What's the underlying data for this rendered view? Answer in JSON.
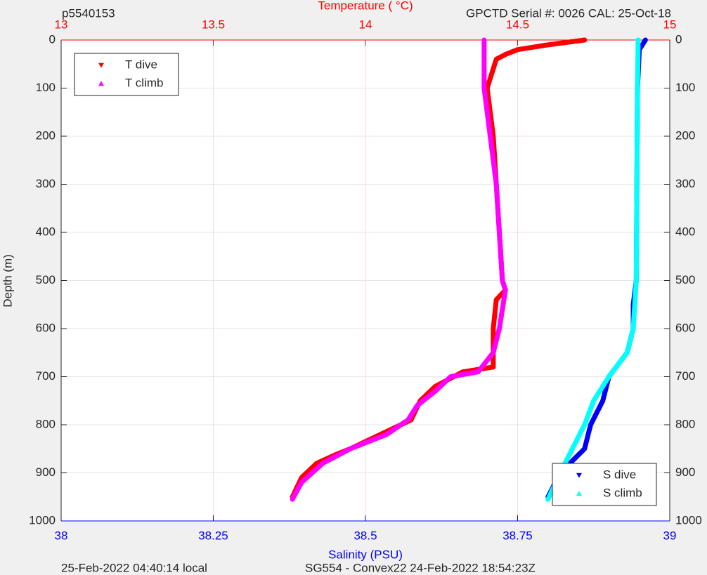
{
  "chart_data": {
    "type": "line",
    "title": "p5540153",
    "subtitle": "GPCTD Serial #: 0026 CAL: 25-Oct-18",
    "x2label": "Temperature (   °C)",
    "xlabel": "Salinity (PSU)",
    "ylabel": "Depth (m)",
    "footer_left": "25-Feb-2022 04:40:14 local",
    "footer_right": "SG554 - Convex22 24-Feb-2022 18:54:23Z",
    "xlim": [
      38,
      39
    ],
    "xticks": [
      38,
      38.25,
      38.5,
      38.75,
      39
    ],
    "xcolor": "#0000ff",
    "x2lim": [
      13,
      15
    ],
    "x2ticks": [
      13,
      13.5,
      14,
      14.5,
      15
    ],
    "x2color": "#ff0000",
    "ylim": [
      1000,
      0
    ],
    "yticks": [
      0,
      100,
      200,
      300,
      400,
      500,
      600,
      700,
      800,
      900,
      1000
    ],
    "grid": true,
    "series": [
      {
        "name": "T dive",
        "color": "#ff0000",
        "marker": "v",
        "axis": "x2",
        "legend": "upper left",
        "x": [
          14.72,
          14.6,
          14.5,
          14.46,
          14.43,
          14.42,
          14.4,
          14.42,
          14.43,
          14.44,
          14.45,
          14.46,
          14.43,
          14.42,
          14.42,
          14.42,
          14.32,
          14.23,
          14.18,
          14.15,
          14.05,
          13.95,
          13.91,
          13.84,
          13.79,
          13.76
        ],
        "values": [
          0,
          10,
          20,
          30,
          40,
          60,
          100,
          200,
          300,
          400,
          500,
          520,
          540,
          600,
          650,
          680,
          690,
          720,
          750,
          790,
          820,
          850,
          860,
          880,
          910,
          950
        ]
      },
      {
        "name": "T climb",
        "color": "#ff00ff",
        "marker": "^",
        "axis": "x2",
        "legend": "upper left",
        "x": [
          14.39,
          14.39,
          14.41,
          14.43,
          14.44,
          14.45,
          14.46,
          14.44,
          14.42,
          14.37,
          14.28,
          14.23,
          14.17,
          14.14,
          14.07,
          13.95,
          13.86,
          13.79,
          13.76
        ],
        "values": [
          0,
          100,
          200,
          300,
          400,
          500,
          520,
          600,
          650,
          690,
          700,
          730,
          760,
          790,
          820,
          850,
          880,
          920,
          955
        ]
      },
      {
        "name": "S dive",
        "color": "#0000ff",
        "marker": "v",
        "axis": "x",
        "legend": "lower right",
        "x": [
          38.96,
          38.95,
          38.947,
          38.946,
          38.945,
          38.94,
          38.94,
          38.93,
          38.9,
          38.89,
          38.87,
          38.86,
          38.82,
          38.8
        ],
        "values": [
          0,
          20,
          100,
          300,
          500,
          550,
          600,
          650,
          700,
          750,
          800,
          850,
          900,
          950
        ]
      },
      {
        "name": "S climb",
        "color": "#00ffff",
        "marker": "^",
        "axis": "x",
        "legend": "lower right",
        "x": [
          38.948,
          38.947,
          38.946,
          38.945,
          38.94,
          38.93,
          38.9,
          38.875,
          38.86,
          38.84,
          38.82,
          38.8
        ],
        "values": [
          0,
          100,
          300,
          500,
          600,
          650,
          700,
          750,
          800,
          850,
          900,
          955
        ]
      }
    ]
  }
}
